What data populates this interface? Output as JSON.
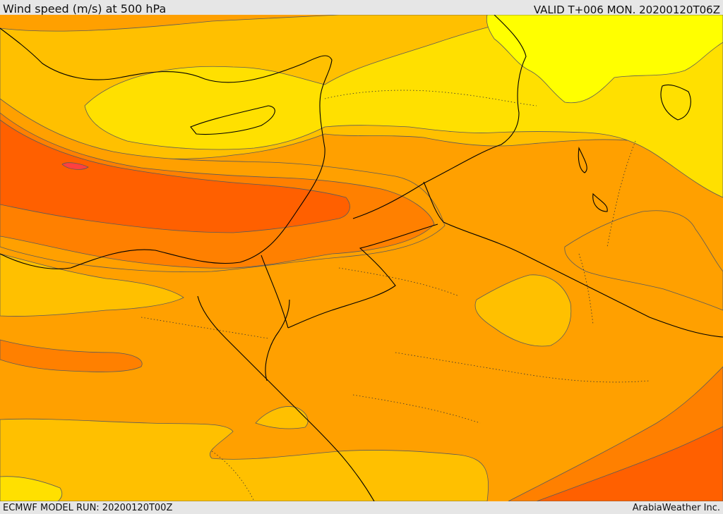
{
  "header": {
    "title": "Wind speed (m/s) at 500 hPa",
    "valid_time": "VALID T+006 MON. 20200120T06Z"
  },
  "footer": {
    "model_run": "ECMWF MODEL RUN: 20200120T00Z",
    "credit": "ArabiaWeather Inc."
  },
  "map": {
    "colors": {
      "band_1": "#ffff00",
      "band_2": "#ffe000",
      "band_3": "#ffc000",
      "band_4": "#ffa000",
      "band_5": "#ff8000",
      "band_6": "#ff6000",
      "band_7": "#ff4040",
      "coastline": "#000000",
      "contour": "#5a5a5a"
    }
  }
}
